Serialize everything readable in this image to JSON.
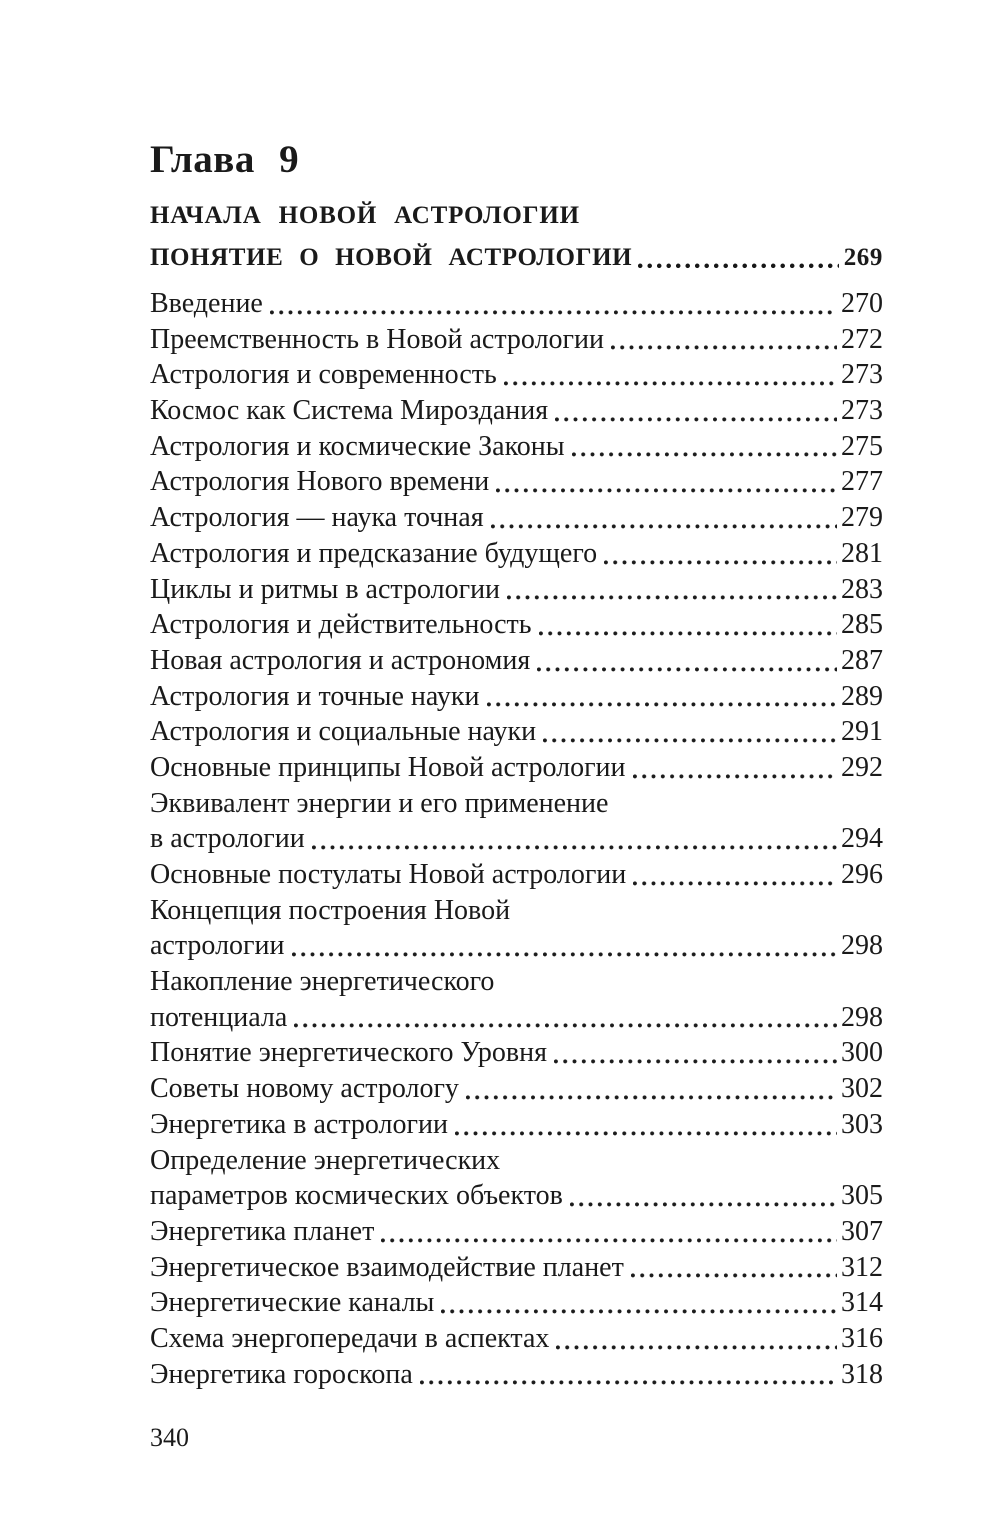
{
  "page": {
    "chapter": "Глава 9",
    "section_title": "НАЧАЛА НОВОЙ АСТРОЛОГИИ",
    "footer_page_number": "340"
  },
  "toc": {
    "header_entry": {
      "title": "ПОНЯТИЕ О НОВОЙ АСТРОЛОГИИ",
      "page": "269"
    },
    "entries": [
      {
        "text": "Введение",
        "page": "270"
      },
      {
        "text": "Преемственность в Новой астрологии",
        "page": "272"
      },
      {
        "text": "Астрология и современность",
        "page": "273"
      },
      {
        "text": "Космос как Система Мироздания",
        "page": "273"
      },
      {
        "text": "Астрология и космические Законы",
        "page": "275"
      },
      {
        "text": "Астрология Нового времени",
        "page": "277"
      },
      {
        "text": "Астрология — наука точная",
        "page": "279"
      },
      {
        "text": "Астрология и предсказание будущего",
        "page": "281"
      },
      {
        "text": "Циклы и ритмы в астрологии",
        "page": "283"
      },
      {
        "text": "Астрология и действительность",
        "page": "285"
      },
      {
        "text": "Новая астрология и астрономия",
        "page": "287"
      },
      {
        "text": "Астрология и точные науки",
        "page": "289"
      },
      {
        "text": "Астрология и социальные науки",
        "page": "291"
      },
      {
        "text": "Основные принципы Новой астрологии",
        "page": "292"
      },
      {
        "text": "Эквивалент энергии и его применение",
        "page": null
      },
      {
        "text": "в астрологии",
        "page": "294"
      },
      {
        "text": "Основные постулаты Новой астрологии",
        "page": "296"
      },
      {
        "text": "Концепция построения Новой",
        "page": null
      },
      {
        "text": "астрологии",
        "page": "298"
      },
      {
        "text": "Накопление энергетического",
        "page": null
      },
      {
        "text": "потенциала",
        "page": "298"
      },
      {
        "text": "Понятие энергетического Уровня",
        "page": "300"
      },
      {
        "text": "Советы новому астрологу",
        "page": "302"
      },
      {
        "text": "Энергетика в астрологии",
        "page": "303"
      },
      {
        "text": "Определение энергетических",
        "page": null
      },
      {
        "text": "параметров космических объектов",
        "page": "305"
      },
      {
        "text": "Энергетика планет",
        "page": "307"
      },
      {
        "text": "Энергетическое взаимодействие планет",
        "page": "312"
      },
      {
        "text": "Энергетические каналы",
        "page": "314"
      },
      {
        "text": "Схема энергопередачи в аспектах",
        "page": "316"
      },
      {
        "text": "Энергетика гороскопа",
        "page": "318"
      }
    ]
  }
}
